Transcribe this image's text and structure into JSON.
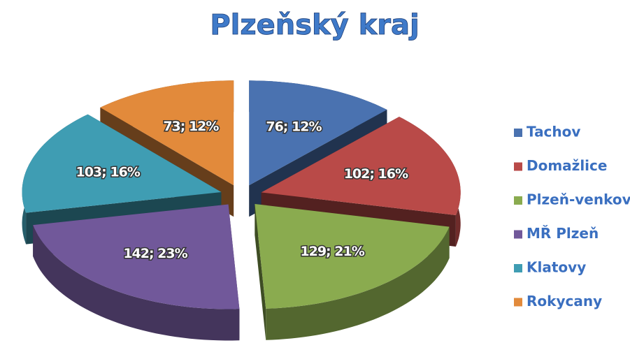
{
  "chart_data": {
    "type": "pie",
    "title": "Plzeňský kraj",
    "categories": [
      "Tachov",
      "Domažlice",
      "Plzeň-venkov",
      "MŘ Plzeň",
      "Klatovy",
      "Rokycany"
    ],
    "values": [
      76,
      102,
      129,
      142,
      103,
      73
    ],
    "value_labels": [
      "76; 12%",
      "102; 16%",
      "129; 21%",
      "142; 23%",
      "103; 16%",
      "73; 12%"
    ],
    "colors": [
      "#4a72b0",
      "#b94a48",
      "#8aab4f",
      "#71589a",
      "#3f9db3",
      "#e28a3b"
    ],
    "legend": "right"
  }
}
